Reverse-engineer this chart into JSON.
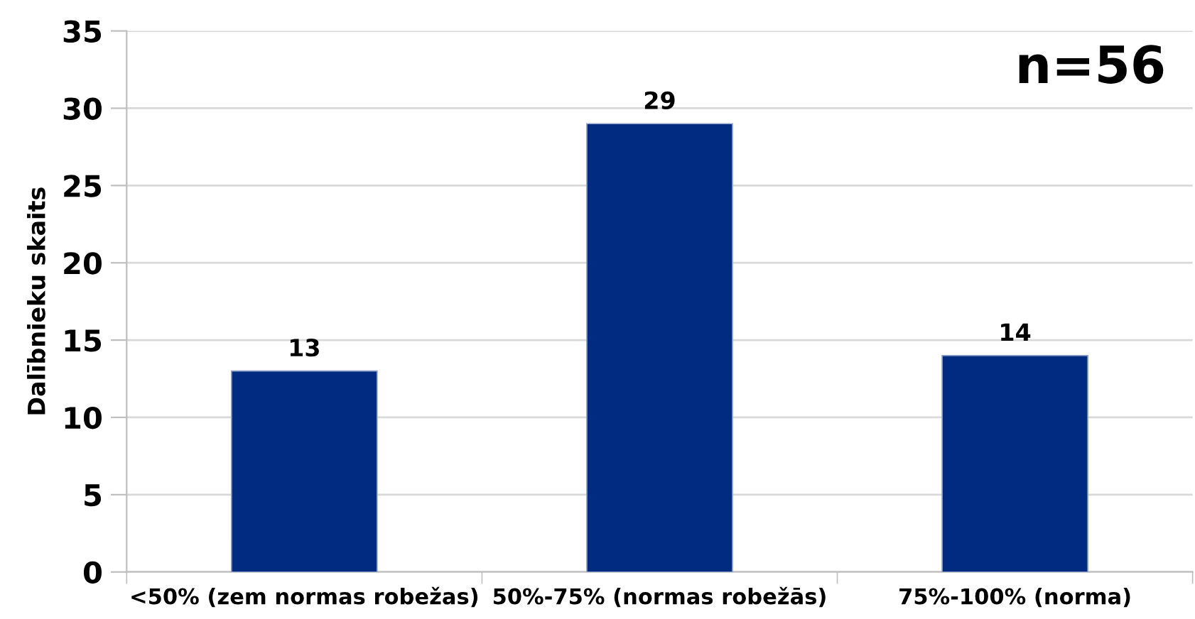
{
  "chart_data": {
    "type": "bar",
    "ylabel": "Dalībnieku skaits",
    "categories": [
      "<50% (zem normas robežas)",
      "50%-75% (normas robežās)",
      "75%-100% (norma)"
    ],
    "values": [
      13,
      29,
      14
    ],
    "color": "#002b80",
    "ylim": [
      0,
      35
    ],
    "yticks": [
      0,
      5,
      10,
      15,
      20,
      25,
      30,
      35
    ],
    "grid": "y",
    "data_labels": true,
    "annotations": [
      "n=56"
    ]
  }
}
